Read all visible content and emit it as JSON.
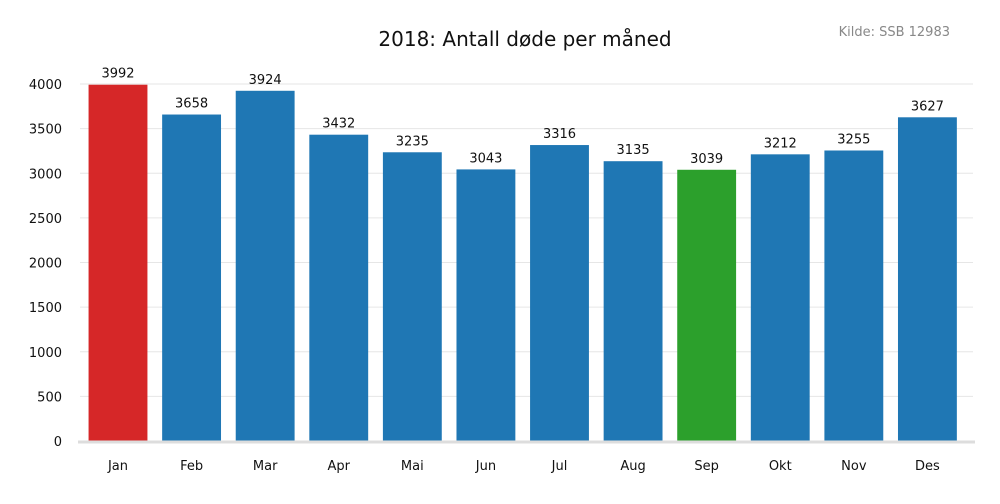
{
  "chart_data": {
    "type": "bar",
    "title": "2018: Antall døde per måned",
    "source": "Kilde: SSB 12983",
    "categories": [
      "Jan",
      "Feb",
      "Mar",
      "Apr",
      "Mai",
      "Jun",
      "Jul",
      "Aug",
      "Sep",
      "Okt",
      "Nov",
      "Des"
    ],
    "values": [
      3992,
      3658,
      3924,
      3432,
      3235,
      3043,
      3316,
      3135,
      3039,
      3212,
      3255,
      3627
    ],
    "colors": [
      "#d62728",
      "#1f77b4",
      "#1f77b4",
      "#1f77b4",
      "#1f77b4",
      "#1f77b4",
      "#1f77b4",
      "#1f77b4",
      "#2ca02c",
      "#1f77b4",
      "#1f77b4",
      "#1f77b4"
    ],
    "yticks": [
      0,
      500,
      1000,
      1500,
      2000,
      2500,
      3000,
      3500,
      4000
    ],
    "ylim": [
      0,
      4000
    ],
    "xlabel": "",
    "ylabel": "",
    "grid": true,
    "data_labels": true
  }
}
